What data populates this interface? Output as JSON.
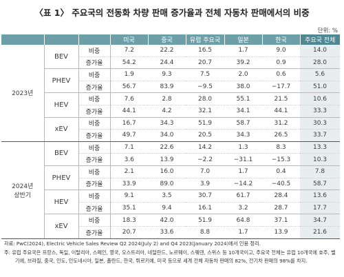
{
  "title": "〈표 1〉 주요국의 전동화 차량 판매 증가율과 전체 자동차 판매에서의 비중",
  "unit": "단위: %",
  "columns": [
    "미국",
    "중국",
    "유럽 주요국",
    "일본",
    "한국",
    "주요국 전체"
  ],
  "sections": [
    {
      "year": "2023년",
      "groups": [
        {
          "type": "BEV",
          "rows": [
            {
              "metric": "비중",
              "values": [
                "7.2",
                "22.2",
                "16.5",
                "1.7",
                "9.0",
                "14.0"
              ]
            },
            {
              "metric": "증가율",
              "values": [
                "54.2",
                "24.4",
                "20.7",
                "39.2",
                "0.9",
                "28.0"
              ]
            }
          ]
        },
        {
          "type": "PHEV",
          "rows": [
            {
              "metric": "비중",
              "values": [
                "1.9",
                "9.3",
                "7.5",
                "2.0",
                "0.6",
                "5.6"
              ]
            },
            {
              "metric": "증가율",
              "values": [
                "56.7",
                "83.9",
                "−9.5",
                "38.0",
                "−17.7",
                "51.0"
              ]
            }
          ]
        },
        {
          "type": "HEV",
          "rows": [
            {
              "metric": "비중",
              "values": [
                "7.6",
                "2.8",
                "28.0",
                "55.1",
                "21.5",
                "10.6"
              ]
            },
            {
              "metric": "증가율",
              "values": [
                "44.1",
                "4.2",
                "32.1",
                "34.1",
                "44.1",
                "33.3"
              ]
            }
          ]
        },
        {
          "type": "xEV",
          "rows": [
            {
              "metric": "비중",
              "values": [
                "16.7",
                "34.3",
                "51.9",
                "58.7",
                "31.2",
                "30.3"
              ]
            },
            {
              "metric": "증가율",
              "values": [
                "49.7",
                "34.0",
                "20.5",
                "34.3",
                "26.5",
                "33.7"
              ]
            }
          ]
        }
      ]
    },
    {
      "year": "2024년",
      "year2": "상반기",
      "groups": [
        {
          "type": "BEV",
          "rows": [
            {
              "metric": "비중",
              "values": [
                "7.1",
                "22.6",
                "14.2",
                "1.3",
                "8.3",
                "13.3"
              ]
            },
            {
              "metric": "증가율",
              "values": [
                "3.6",
                "13.9",
                "−2.2",
                "−31.1",
                "−15.3",
                "10.3"
              ]
            }
          ]
        },
        {
          "type": "PHEV",
          "rows": [
            {
              "metric": "비중",
              "values": [
                "2.1",
                "16.0",
                "7.0",
                "1.7",
                "0.4",
                "7.8"
              ]
            },
            {
              "metric": "증가율",
              "values": [
                "33.9",
                "89.0",
                "3.9",
                "−14.2",
                "−40.5",
                "58.7"
              ]
            }
          ]
        },
        {
          "type": "HEV",
          "rows": [
            {
              "metric": "비중",
              "values": [
                "9.1",
                "3.5",
                "30.7",
                "61.7",
                "28.4",
                "13.6"
              ]
            },
            {
              "metric": "증가율",
              "values": [
                "35.1",
                "9.4",
                "16.1",
                "3.2",
                "28.7",
                "17.7"
              ]
            }
          ]
        },
        {
          "type": "xEV",
          "rows": [
            {
              "metric": "비중",
              "values": [
                "18.3",
                "42.0",
                "51.9",
                "64.8",
                "37.1",
                "34.7"
              ]
            },
            {
              "metric": "증가율",
              "values": [
                "20.7",
                "33.6",
                "8.8",
                "1.7",
                "13.9",
                "21.6"
              ]
            }
          ]
        }
      ]
    }
  ],
  "source": "자료: PwC(2024), Electric Vehicle Sales Review Q2 2024(July 2) and Q4 2023(January 2024)에서 인용 정리.",
  "note": "주: 유럽 주요국은 프랑스, 독일, 이탈리아, 스페인, 영국, 오스트리아, 네덜란드, 노르웨이, 스웨덴, 스위스 등 10개국이고, 주요국 전체는 유럽 10개국에 호주, 벨기에, 브라질, 중국, 인도, 인도네시아, 일본, 폴란드, 한국, 튀르키예, 미국 등으로 세계 전체 자동차 판매의 82%, 전기차 판매의 98%를 차지."
}
